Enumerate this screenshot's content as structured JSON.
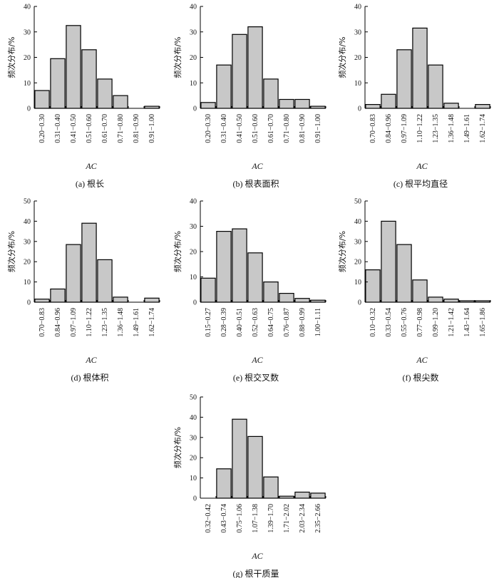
{
  "figure": {
    "ylabel": "频次分布/%",
    "xlabel": "AC"
  },
  "chart_data": [
    {
      "type": "bar",
      "caption_prefix": "(a)",
      "caption": "根长",
      "categories": [
        "0.20−0.30",
        "0.31−0.40",
        "0.41−0.50",
        "0.51−0.60",
        "0.61−0.70",
        "0.71−0.80",
        "0.81−0.90",
        "0.91−1.00"
      ],
      "values": [
        7,
        19.5,
        32.5,
        23,
        11.5,
        5,
        0,
        0.8
      ],
      "ylim": [
        0,
        40
      ],
      "yticks": [
        0,
        10,
        20,
        30,
        40
      ]
    },
    {
      "type": "bar",
      "caption_prefix": "(b)",
      "caption": "根表面积",
      "categories": [
        "0.20−0.30",
        "0.31−0.40",
        "0.41−0.50",
        "0.51−0.60",
        "0.61−0.70",
        "0.71−0.80",
        "0.81−0.90",
        "0.91−1.00"
      ],
      "values": [
        2.3,
        17,
        29,
        32,
        11.5,
        3.5,
        3.5,
        0.8
      ],
      "ylim": [
        0,
        40
      ],
      "yticks": [
        0,
        10,
        20,
        30,
        40
      ]
    },
    {
      "type": "bar",
      "caption_prefix": "(c)",
      "caption": "根平均直径",
      "categories": [
        "0.70−0.83",
        "0.84−0.96",
        "0.97−1.09",
        "1.10−1.22",
        "1.23−1.35",
        "1.36−1.48",
        "1.49−1.61",
        "1.62−1.74"
      ],
      "values": [
        1.5,
        5.5,
        23,
        31.5,
        17,
        2,
        0,
        1.5
      ],
      "ylim": [
        0,
        40
      ],
      "yticks": [
        0,
        10,
        20,
        30,
        40
      ]
    },
    {
      "type": "bar",
      "caption_prefix": "(d)",
      "caption": "根体积",
      "categories": [
        "0.70−0.83",
        "0.84−0.96",
        "0.97−1.09",
        "1.10−1.22",
        "1.23−1.35",
        "1.36−1.48",
        "1.49−1.61",
        "1.62−1.74"
      ],
      "values": [
        1.5,
        6.5,
        28.5,
        39,
        21,
        2.5,
        0,
        2
      ],
      "ylim": [
        0,
        50
      ],
      "yticks": [
        0,
        10,
        20,
        30,
        40,
        50
      ]
    },
    {
      "type": "bar",
      "caption_prefix": "(e)",
      "caption": "根交叉数",
      "categories": [
        "0.15−0.27",
        "0.28−0.39",
        "0.40−0.51",
        "0.52−0.63",
        "0.64−0.75",
        "0.76−0.87",
        "0.88−0.99",
        "1.00−1.11"
      ],
      "values": [
        9.5,
        28,
        29,
        19.5,
        8,
        3.5,
        1.5,
        0.8
      ],
      "ylim": [
        0,
        40
      ],
      "yticks": [
        0,
        10,
        20,
        30,
        40
      ]
    },
    {
      "type": "bar",
      "caption_prefix": "(f)",
      "caption": "根尖数",
      "categories": [
        "0.10−0.32",
        "0.33−0.54",
        "0.55−0.76",
        "0.77−0.98",
        "0.99−1.20",
        "1.21−1.42",
        "1.43−1.64",
        "1.65−1.86"
      ],
      "values": [
        16,
        40,
        28.5,
        11,
        2.5,
        1.5,
        0.7,
        0.7
      ],
      "ylim": [
        0,
        50
      ],
      "yticks": [
        0,
        10,
        20,
        30,
        40,
        50
      ]
    },
    {
      "type": "bar",
      "caption_prefix": "(g)",
      "caption": "根干质量",
      "categories": [
        "0.32−0.42",
        "0.43−0.74",
        "0.75−1.06",
        "1.07−1.38",
        "1.39−1.70",
        "1.71−2.02",
        "2.03−2.34",
        "2.35−2.66"
      ],
      "values": [
        0,
        14.5,
        39,
        30.5,
        10.5,
        1,
        3,
        2.5
      ],
      "ylim": [
        0,
        50
      ],
      "yticks": [
        0,
        10,
        20,
        30,
        40,
        50
      ]
    }
  ]
}
